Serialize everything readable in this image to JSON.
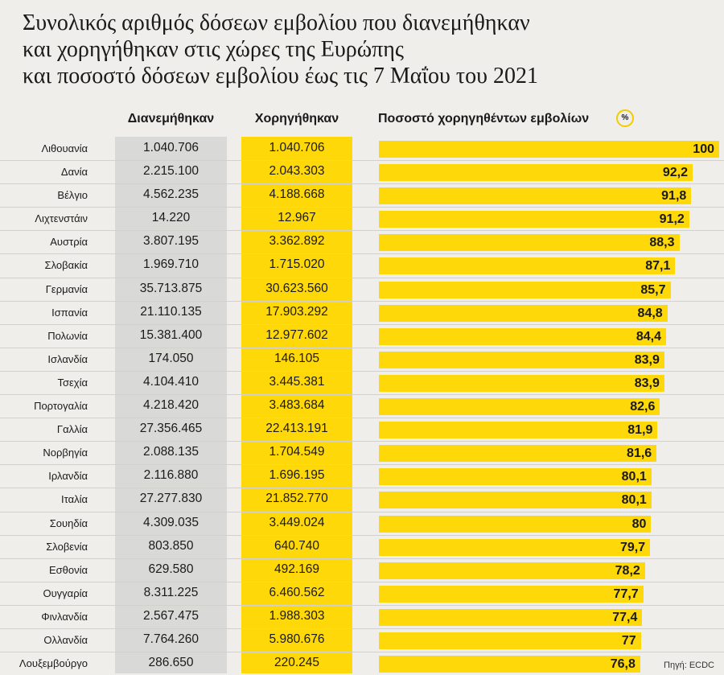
{
  "title_lines": [
    "Συνολικός αριθμός δόσεων εμβολίου που διανεμήθηκαν",
    "και χορηγήθηκαν στις χώρες της Ευρώπης",
    "και ποσοστό δόσεων εμβολίου έως τις 7 Μαΐου του 2021"
  ],
  "headers": {
    "distributed": "Διανεμήθηκαν",
    "administered": "Χορηγήθηκαν",
    "percent": "Ποσοστό χορηγηθέντων εμβολίων",
    "percent_badge": "%"
  },
  "source": "Πηγή: ECDC",
  "colors": {
    "accent": "#ffd80a",
    "grey_column": "#d9d9d7",
    "background": "#efeeea"
  },
  "chart_data": {
    "type": "table",
    "title": "Συνολικός αριθμός δόσεων εμβολίου που διανεμήθηκαν και χορηγήθηκαν στις χώρες της Ευρώπης και ποσοστό δόσεων εμβολίου έως τις 7 Μαΐου του 2021",
    "columns": [
      "Διανεμήθηκαν",
      "Χορηγήθηκαν",
      "Ποσοστό χορηγηθέντων εμβολίων"
    ],
    "xlim": [
      0,
      100
    ],
    "rows": [
      {
        "country": "Λιθουανία",
        "distributed": "1.040.706",
        "administered": "1.040.706",
        "percent": "100"
      },
      {
        "country": "Δανία",
        "distributed": "2.215.100",
        "administered": "2.043.303",
        "percent": "92,2"
      },
      {
        "country": "Βέλγιο",
        "distributed": "4.562.235",
        "administered": "4.188.668",
        "percent": "91,8"
      },
      {
        "country": "Λιχτενστάιν",
        "distributed": "14.220",
        "administered": "12.967",
        "percent": "91,2"
      },
      {
        "country": "Αυστρία",
        "distributed": "3.807.195",
        "administered": "3.362.892",
        "percent": "88,3"
      },
      {
        "country": "Σλοβακία",
        "distributed": "1.969.710",
        "administered": "1.715.020",
        "percent": "87,1"
      },
      {
        "country": "Γερμανία",
        "distributed": "35.713.875",
        "administered": "30.623.560",
        "percent": "85,7"
      },
      {
        "country": "Ισπανία",
        "distributed": "21.110.135",
        "administered": "17.903.292",
        "percent": "84,8"
      },
      {
        "country": "Πολωνία",
        "distributed": "15.381.400",
        "administered": "12.977.602",
        "percent": "84,4"
      },
      {
        "country": "Ισλανδία",
        "distributed": "174.050",
        "administered": "146.105",
        "percent": "83,9"
      },
      {
        "country": "Τσεχία",
        "distributed": "4.104.410",
        "administered": "3.445.381",
        "percent": "83,9"
      },
      {
        "country": "Πορτογαλία",
        "distributed": "4.218.420",
        "administered": "3.483.684",
        "percent": "82,6"
      },
      {
        "country": "Γαλλία",
        "distributed": "27.356.465",
        "administered": "22.413.191",
        "percent": "81,9"
      },
      {
        "country": "Νορβηγία",
        "distributed": "2.088.135",
        "administered": "1.704.549",
        "percent": "81,6"
      },
      {
        "country": "Ιρλανδία",
        "distributed": "2.116.880",
        "administered": "1.696.195",
        "percent": "80,1"
      },
      {
        "country": "Ιταλία",
        "distributed": "27.277.830",
        "administered": "21.852.770",
        "percent": "80,1"
      },
      {
        "country": "Σουηδία",
        "distributed": "4.309.035",
        "administered": "3.449.024",
        "percent": "80"
      },
      {
        "country": "Σλοβενία",
        "distributed": "803.850",
        "administered": "640.740",
        "percent": "79,7"
      },
      {
        "country": "Εσθονία",
        "distributed": "629.580",
        "administered": "492.169",
        "percent": "78,2"
      },
      {
        "country": "Ουγγαρία",
        "distributed": "8.311.225",
        "administered": "6.460.562",
        "percent": "77,7"
      },
      {
        "country": "Φινλανδία",
        "distributed": "2.567.475",
        "administered": "1.988.303",
        "percent": "77,4"
      },
      {
        "country": "Ολλανδία",
        "distributed": "7.764.260",
        "administered": "5.980.676",
        "percent": "77"
      },
      {
        "country": "Λουξεμβούργο",
        "distributed": "286.650",
        "administered": "220.245",
        "percent": "76,8"
      }
    ]
  }
}
